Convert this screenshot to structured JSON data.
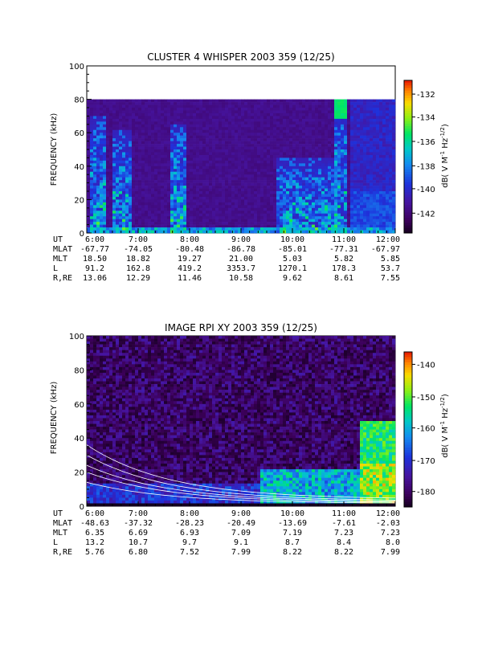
{
  "chart_data": [
    {
      "type": "heatmap",
      "title": "CLUSTER 4 WHISPER 2003 359 (12/25)",
      "ylabel": "FREQUENCY (kHz)",
      "ylim": [
        0,
        100
      ],
      "yticks": [
        "0",
        "20",
        "40",
        "60",
        "80",
        "100"
      ],
      "xticks": [
        "6:00",
        "7:00",
        "8:00",
        "9:00",
        "10:00",
        "11:00",
        "12:00"
      ],
      "xlim_hours": [
        6,
        12
      ],
      "colorbar": {
        "label": "dB( V M^-1 Hz^-1/2 )",
        "label_main": "dB( V M",
        "label_exp1": "-1",
        "label_mid": " Hz",
        "label_exp2": "-1/2",
        "label_end": ")",
        "ticks": [
          "-132",
          "-134",
          "-136",
          "-138",
          "-140",
          "-142"
        ],
        "range": [
          -144,
          -131
        ]
      },
      "data_top_khz": 80,
      "features": [
        {
          "start_h": 6.05,
          "end_h": 6.35,
          "peak_khz": 70
        },
        {
          "start_h": 6.5,
          "end_h": 6.85,
          "peak_khz": 62
        },
        {
          "start_h": 7.65,
          "end_h": 7.95,
          "peak_khz": 65
        },
        {
          "start_h": 9.7,
          "end_h": 10.9,
          "peak_khz": 45
        },
        {
          "start_h": 10.8,
          "end_h": 11.05,
          "peak_khz": 80
        }
      ],
      "ephemeris": {
        "labels": [
          "UT",
          "MLAT",
          "MLT",
          "L",
          "R,RE"
        ],
        "rows": [
          [
            "6:00",
            "7:00",
            "8:00",
            "9:00",
            "10:00",
            "11:00",
            "12:00"
          ],
          [
            "-67.77",
            "-74.05",
            "-80.48",
            "-86.78",
            "-85.01",
            "-77.31",
            "-67.97"
          ],
          [
            "18.50",
            "18.82",
            "19.27",
            "21.00",
            "5.03",
            "5.82",
            "5.85"
          ],
          [
            "91.2",
            "162.8",
            "419.2",
            "3353.7",
            "1270.1",
            "178.3",
            "53.7"
          ],
          [
            "13.06",
            "12.29",
            "11.46",
            "10.58",
            "9.62",
            "8.61",
            "7.55"
          ]
        ]
      }
    },
    {
      "type": "heatmap",
      "title": "IMAGE RPI XY 2003 359 (12/25)",
      "ylabel": "FREQUENCY (kHz)",
      "ylim": [
        0,
        100
      ],
      "yticks": [
        "0",
        "20",
        "40",
        "60",
        "80",
        "100"
      ],
      "xticks": [
        "6:00",
        "7:00",
        "8:00",
        "9:00",
        "10:00",
        "11:00",
        "12:00"
      ],
      "xlim_hours": [
        6,
        12
      ],
      "colorbar": {
        "label": "dB( V M^-1 Hz^-1/2 )",
        "label_main": "dB( V M",
        "label_exp1": "-1",
        "label_mid": " Hz",
        "label_exp2": "-1/2",
        "label_end": ")",
        "ticks": [
          "-140",
          "-150",
          "-160",
          "-170",
          "-180"
        ],
        "range": [
          -185,
          -135
        ]
      },
      "ephemeris": {
        "labels": [
          "UT",
          "MLAT",
          "MLT",
          "L",
          "R,RE"
        ],
        "rows": [
          [
            "6:00",
            "7:00",
            "8:00",
            "9:00",
            "10:00",
            "11:00",
            "12:00"
          ],
          [
            "-48.63",
            "-37.32",
            "-28.23",
            "-20.49",
            "-13.69",
            "-7.61",
            "-2.03"
          ],
          [
            "6.35",
            "6.69",
            "6.93",
            "7.09",
            "7.19",
            "7.23",
            "7.23"
          ],
          [
            "13.2",
            "10.7",
            "9.7",
            "9.1",
            "8.7",
            "8.4",
            "8.0"
          ],
          [
            "5.76",
            "6.80",
            "7.52",
            "7.99",
            "8.22",
            "8.22",
            "7.99"
          ]
        ]
      }
    }
  ]
}
